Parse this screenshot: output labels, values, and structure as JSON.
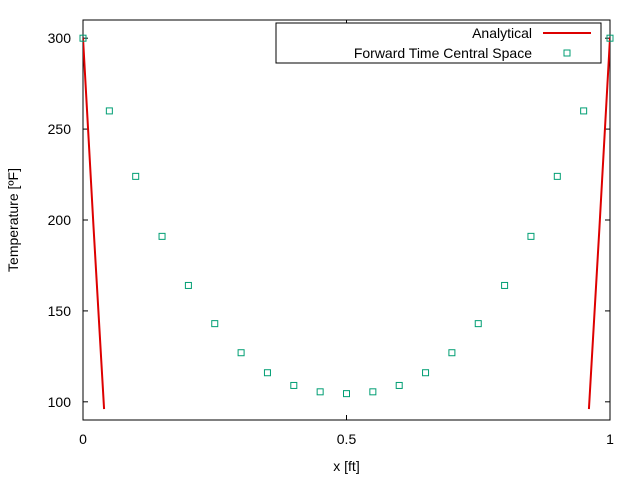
{
  "chart_data": {
    "type": "scatter",
    "xlabel": "x [ft]",
    "ylabel": "Temperature [ºF]",
    "xlim": [
      0,
      1
    ],
    "ylim": [
      90,
      310
    ],
    "xticks": [
      {
        "value": 0,
        "label": "0"
      },
      {
        "value": 0.5,
        "label": "0.5"
      },
      {
        "value": 1,
        "label": "1"
      }
    ],
    "yticks": [
      {
        "value": 100,
        "label": "100"
      },
      {
        "value": 150,
        "label": "150"
      },
      {
        "value": 200,
        "label": "200"
      },
      {
        "value": 250,
        "label": "250"
      },
      {
        "value": 300,
        "label": "300"
      }
    ],
    "grid": false,
    "legend_position": "top-right",
    "series": [
      {
        "name": "Analytical",
        "kind": "line",
        "color": "#dd0000",
        "x": [
          0,
          0.005,
          0.01,
          0.015,
          0.02,
          0.025,
          0.03,
          0.035,
          0.04
        ],
        "y": [
          300,
          274,
          248,
          222,
          196,
          171,
          146,
          121,
          96
        ]
      },
      {
        "name": "Analytical-right",
        "kind": "line",
        "color": "#dd0000",
        "x": [
          0.96,
          0.965,
          0.97,
          0.975,
          0.98,
          0.985,
          0.99,
          0.995,
          1
        ],
        "y": [
          96,
          121,
          146,
          171,
          196,
          222,
          248,
          274,
          300
        ]
      },
      {
        "name": "Forward Time Central Space",
        "kind": "points",
        "marker": "open-square",
        "color": "#009e73",
        "x": [
          0,
          0.05,
          0.1,
          0.15,
          0.2,
          0.25,
          0.3,
          0.35,
          0.4,
          0.45,
          0.5,
          0.55,
          0.6,
          0.65,
          0.7,
          0.75,
          0.8,
          0.85,
          0.9,
          0.95,
          1
        ],
        "y": [
          300,
          260,
          224,
          191,
          164,
          143,
          127,
          116,
          109,
          105.5,
          104.5,
          105.5,
          109,
          116,
          127,
          143,
          164,
          191,
          224,
          260,
          300
        ]
      }
    ]
  },
  "legend": {
    "items": [
      {
        "label": "Analytical",
        "series": 0
      },
      {
        "label": "Forward Time Central Space",
        "series": 2
      }
    ]
  }
}
